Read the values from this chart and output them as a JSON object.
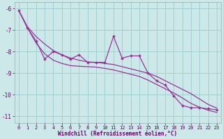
{
  "x": [
    0,
    1,
    2,
    3,
    4,
    5,
    6,
    7,
    8,
    9,
    10,
    11,
    12,
    13,
    14,
    15,
    16,
    17,
    18,
    19,
    20,
    21,
    22,
    23
  ],
  "line_zigzag": [
    -6.1,
    -6.9,
    -7.5,
    -8.35,
    -8.0,
    -8.15,
    -8.35,
    -8.15,
    -8.5,
    -8.5,
    -8.5,
    -7.3,
    -8.3,
    -8.2,
    -8.2,
    -9.0,
    -9.35,
    -9.55,
    -10.05,
    -10.5,
    -10.6,
    -10.6,
    -10.65,
    -10.7
  ],
  "line_smooth_top": [
    -6.1,
    -6.85,
    -7.3,
    -7.65,
    -7.95,
    -8.15,
    -8.3,
    -8.4,
    -8.48,
    -8.5,
    -8.55,
    -8.6,
    -8.7,
    -8.8,
    -8.9,
    -9.0,
    -9.15,
    -9.35,
    -9.55,
    -9.75,
    -9.95,
    -10.2,
    -10.45,
    -10.62
  ],
  "line_smooth_bottom": [
    -6.1,
    -6.9,
    -7.6,
    -8.1,
    -8.4,
    -8.55,
    -8.65,
    -8.68,
    -8.7,
    -8.72,
    -8.78,
    -8.85,
    -8.95,
    -9.05,
    -9.15,
    -9.32,
    -9.52,
    -9.72,
    -9.92,
    -10.15,
    -10.4,
    -10.58,
    -10.72,
    -10.82
  ],
  "bg_color": "#cce8e8",
  "line_color": "#993399",
  "grid_color": "#99cccc",
  "xlabel": "Windchill (Refroidissement éolien,°C)",
  "ylim": [
    -11.3,
    -5.7
  ],
  "xlim": [
    -0.5,
    23.5
  ],
  "yticks": [
    -11,
    -10,
    -9,
    -8,
    -7,
    -6
  ],
  "xticks": [
    0,
    1,
    2,
    3,
    4,
    5,
    6,
    7,
    8,
    9,
    10,
    11,
    12,
    13,
    14,
    15,
    16,
    17,
    18,
    19,
    20,
    21,
    22,
    23
  ]
}
